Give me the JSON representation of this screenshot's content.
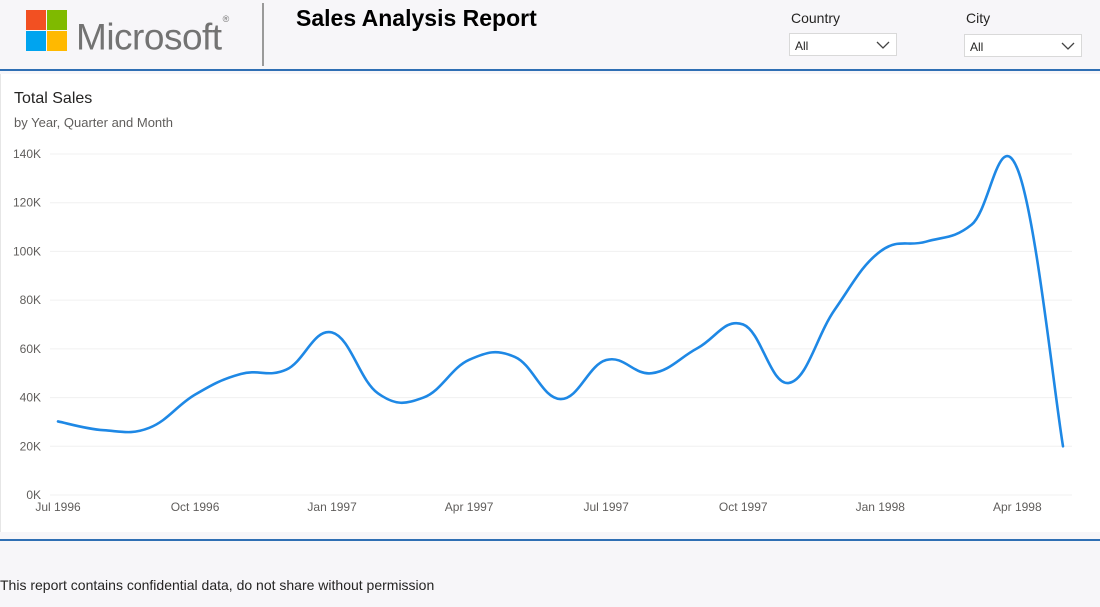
{
  "header": {
    "logo_text": "Microsoft",
    "logo_mark": "®",
    "logo_colors": [
      "#f25022",
      "#7fba00",
      "#00a4ef",
      "#ffb900"
    ],
    "title": "Sales Analysis Report"
  },
  "filters": [
    {
      "label": "Country",
      "value": "All"
    },
    {
      "label": "City",
      "value": "All"
    }
  ],
  "footer": {
    "text": "This report contains confidential data, do not share without permission"
  },
  "colors": {
    "accent": "#2f6fb4",
    "line": "#1e88e5"
  },
  "chart_data": {
    "type": "line",
    "title": "Total Sales",
    "subtitle": "by Year, Quarter and Month",
    "x": [
      "Jul 1996",
      "Aug 1996",
      "Sep 1996",
      "Oct 1996",
      "Nov 1996",
      "Dec 1996",
      "Jan 1997",
      "Feb 1997",
      "Mar 1997",
      "Apr 1997",
      "May 1997",
      "Jun 1997",
      "Jul 1997",
      "Aug 1997",
      "Sep 1997",
      "Oct 1997",
      "Nov 1997",
      "Dec 1997",
      "Jan 1998",
      "Feb 1998",
      "Mar 1998",
      "Apr 1998",
      "May 1998"
    ],
    "x_tick_labels": [
      "Jul 1996",
      "Oct 1996",
      "Jan 1997",
      "Apr 1997",
      "Jul 1997",
      "Oct 1997",
      "Jan 1998",
      "Apr 1998"
    ],
    "series": [
      {
        "values": [
          30200,
          26600,
          27600,
          41200,
          49700,
          51500,
          66700,
          41800,
          40000,
          55500,
          56700,
          39400,
          55400,
          50000,
          60300,
          70000,
          46000,
          76000,
          100000,
          104000,
          111000,
          134000,
          20000
        ]
      }
    ],
    "ylim": [
      0,
      140000
    ],
    "y_ticks": [
      0,
      20000,
      40000,
      60000,
      80000,
      100000,
      120000,
      140000
    ],
    "y_tick_labels": [
      "0K",
      "20K",
      "40K",
      "60K",
      "80K",
      "100K",
      "120K",
      "140K"
    ],
    "grid": true,
    "legend": "none"
  }
}
